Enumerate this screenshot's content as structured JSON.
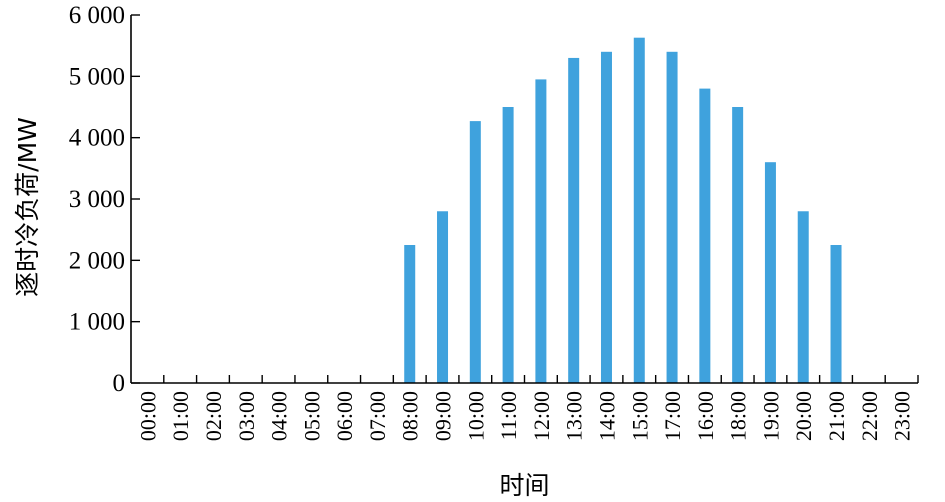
{
  "chart_data": {
    "type": "bar",
    "title": "",
    "xlabel": "时间",
    "ylabel": "逐时冷负荷/MW",
    "ylim": [
      0,
      6000
    ],
    "yticks": [
      0,
      1000,
      2000,
      3000,
      4000,
      5000,
      6000
    ],
    "ytick_labels": [
      "0",
      "1 000",
      "2 000",
      "3 000",
      "4 000",
      "5 000",
      "6 000"
    ],
    "categories": [
      "00:00",
      "01:00",
      "02:00",
      "03:00",
      "04:00",
      "05:00",
      "06:00",
      "07:00",
      "08:00",
      "09:00",
      "10:00",
      "11:00",
      "12:00",
      "13:00",
      "14:00",
      "15:00",
      "17:00",
      "16:00",
      "18:00",
      "19:00",
      "20:00",
      "21:00",
      "22:00",
      "23:00"
    ],
    "values": [
      0,
      0,
      0,
      0,
      0,
      0,
      0,
      0,
      2250,
      2800,
      4270,
      4500,
      4950,
      5300,
      5400,
      5630,
      5400,
      4800,
      4500,
      3600,
      2800,
      2250,
      0,
      0
    ],
    "bar_color": "#3fa2dd",
    "grid": false,
    "legend": "none"
  }
}
